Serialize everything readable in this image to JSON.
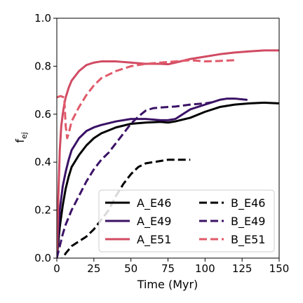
{
  "chart_data": {
    "type": "line",
    "xlabel": "Time (Myr)",
    "ylabel": "f",
    "ylabel_sub": "ej",
    "xlim": [
      0,
      150
    ],
    "ylim": [
      0,
      1.0
    ],
    "xticks": [
      0,
      25,
      50,
      75,
      100,
      125,
      150
    ],
    "yticks": [
      0.0,
      0.2,
      0.4,
      0.6,
      0.8,
      1.0
    ],
    "xtick_labels": [
      "0",
      "25",
      "50",
      "75",
      "100",
      "125",
      "150"
    ],
    "ytick_labels": [
      "0.0",
      "0.2",
      "0.4",
      "0.6",
      "0.8",
      "1.0"
    ],
    "grid": false,
    "legend_placement": "lower-right",
    "legend_columns": 2,
    "series": [
      {
        "name": "A_E46",
        "color": "#000000",
        "dash": "solid",
        "x": [
          0,
          2,
          4,
          6,
          8,
          10,
          15,
          20,
          25,
          30,
          40,
          50,
          60,
          70,
          75,
          80,
          90,
          100,
          110,
          120,
          130,
          140,
          150
        ],
        "y": [
          0,
          0.13,
          0.22,
          0.29,
          0.34,
          0.38,
          0.43,
          0.47,
          0.5,
          0.52,
          0.545,
          0.56,
          0.565,
          0.568,
          0.565,
          0.57,
          0.585,
          0.61,
          0.63,
          0.64,
          0.645,
          0.648,
          0.645
        ]
      },
      {
        "name": "A_E49",
        "color": "#3b1266",
        "dash": "solid",
        "x": [
          0,
          2,
          4,
          6,
          8,
          10,
          15,
          20,
          25,
          30,
          40,
          50,
          60,
          70,
          75,
          80,
          90,
          100,
          110,
          115,
          120,
          128
        ],
        "y": [
          0,
          0.2,
          0.3,
          0.36,
          0.41,
          0.45,
          0.5,
          0.53,
          0.545,
          0.555,
          0.57,
          0.58,
          0.58,
          0.575,
          0.575,
          0.58,
          0.62,
          0.64,
          0.66,
          0.665,
          0.665,
          0.66
        ]
      },
      {
        "name": "A_E51",
        "color": "#d14b63",
        "dash": "solid",
        "x": [
          0,
          1,
          2,
          3,
          4,
          5,
          6,
          8,
          10,
          15,
          20,
          25,
          30,
          40,
          50,
          60,
          70,
          75,
          80,
          90,
          100,
          110,
          120,
          130,
          140,
          150
        ],
        "y": [
          0,
          0.25,
          0.45,
          0.55,
          0.6,
          0.64,
          0.67,
          0.71,
          0.74,
          0.78,
          0.805,
          0.815,
          0.82,
          0.82,
          0.815,
          0.81,
          0.81,
          0.808,
          0.815,
          0.83,
          0.84,
          0.85,
          0.857,
          0.862,
          0.866,
          0.866
        ]
      },
      {
        "name": "B_E46",
        "color": "#000000",
        "dash": "dashed",
        "x": [
          0,
          4,
          6,
          10,
          15,
          20,
          25,
          30,
          35,
          40,
          45,
          50,
          55,
          60,
          65,
          70,
          75,
          80,
          85,
          90
        ],
        "y": [
          -0.02,
          0.0,
          0.02,
          0.05,
          0.07,
          0.09,
          0.12,
          0.16,
          0.2,
          0.26,
          0.31,
          0.35,
          0.38,
          0.395,
          0.4,
          0.405,
          0.41,
          0.41,
          0.41,
          0.41
        ]
      },
      {
        "name": "B_E49",
        "color": "#3b1266",
        "dash": "dashed",
        "x": [
          0,
          2,
          4,
          6,
          8,
          10,
          15,
          20,
          25,
          30,
          35,
          40,
          45,
          50,
          55,
          60,
          65,
          70,
          80,
          90,
          100,
          105
        ],
        "y": [
          0,
          0.05,
          0.1,
          0.14,
          0.17,
          0.2,
          0.26,
          0.32,
          0.37,
          0.41,
          0.44,
          0.48,
          0.52,
          0.56,
          0.59,
          0.615,
          0.625,
          0.628,
          0.632,
          0.64,
          0.645,
          0.65
        ]
      },
      {
        "name": "B_E51",
        "color": "#e05a6a",
        "dash": "dashed",
        "x": [
          0,
          1,
          2,
          3,
          4,
          5,
          6,
          7,
          8,
          10,
          15,
          20,
          25,
          30,
          40,
          50,
          60,
          70,
          80,
          90,
          100,
          110,
          120
        ],
        "y": [
          0.67,
          0.672,
          0.675,
          0.675,
          0.672,
          0.67,
          0.55,
          0.5,
          0.52,
          0.57,
          0.63,
          0.68,
          0.72,
          0.75,
          0.78,
          0.8,
          0.81,
          0.815,
          0.82,
          0.825,
          0.82,
          0.822,
          0.825
        ]
      }
    ]
  }
}
